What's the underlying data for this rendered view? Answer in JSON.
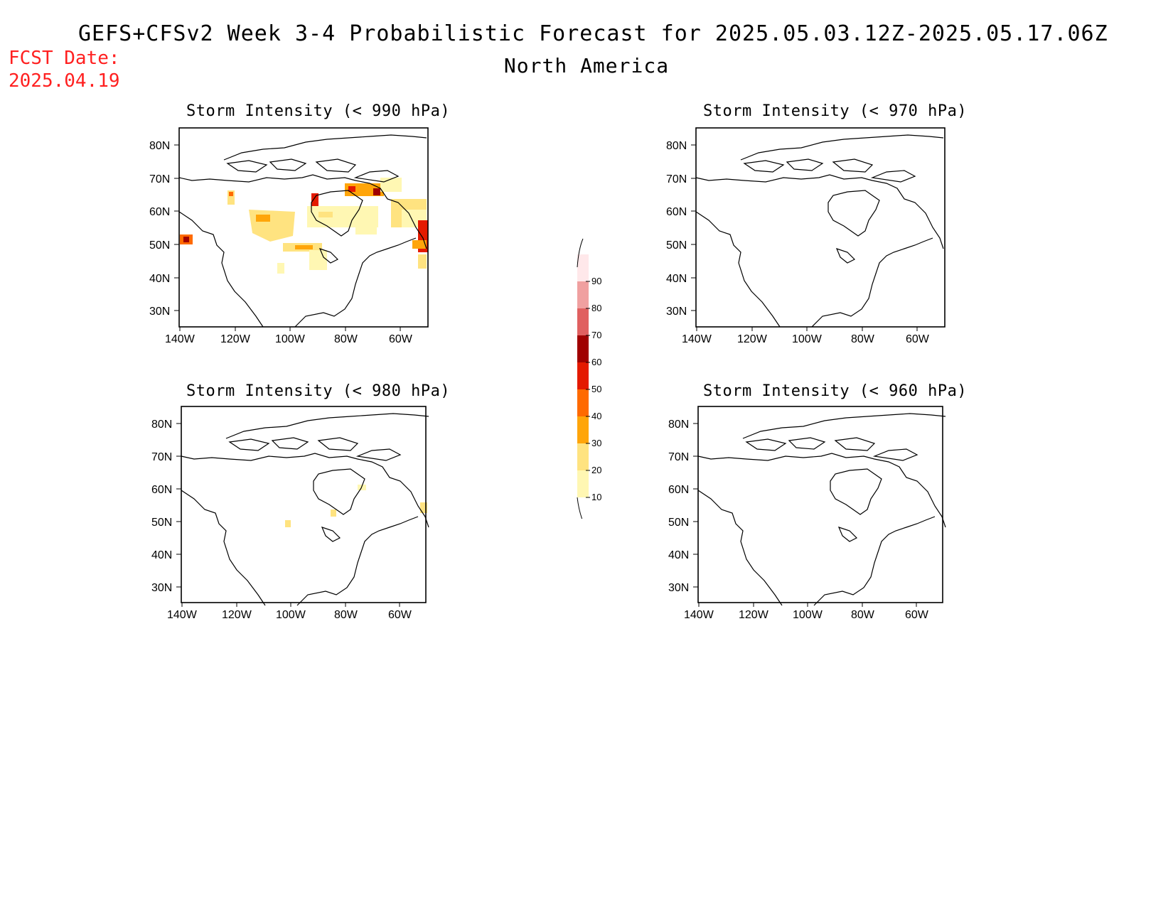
{
  "header": {
    "title": "GEFS+CFSv2 Week 3-4 Probabilistic Forecast for 2025.05.03.12Z-2025.05.17.06Z",
    "subtitle": "North America",
    "fcst_label": "FCST Date:",
    "fcst_date": "2025.04.19"
  },
  "panels": [
    {
      "title": "Storm Intensity (< 990 hPa)"
    },
    {
      "title": "Storm Intensity (< 970 hPa)"
    },
    {
      "title": "Storm Intensity (< 980 hPa)"
    },
    {
      "title": "Storm Intensity (< 960 hPa)"
    }
  ],
  "axes": {
    "lat_ticks": [
      "30N",
      "40N",
      "50N",
      "60N",
      "70N",
      "80N"
    ],
    "lon_ticks": [
      "140W",
      "120W",
      "100W",
      "80W",
      "60W"
    ]
  },
  "colorbar": {
    "levels": [
      "10",
      "20",
      "30",
      "40",
      "50",
      "60",
      "70",
      "80",
      "90"
    ],
    "colors": [
      "#fff7b3",
      "#ffe380",
      "#ffa50a",
      "#ff6a00",
      "#e41a00",
      "#a00000",
      "#e06060",
      "#f0a0a0",
      "#ffe8ea"
    ]
  }
}
